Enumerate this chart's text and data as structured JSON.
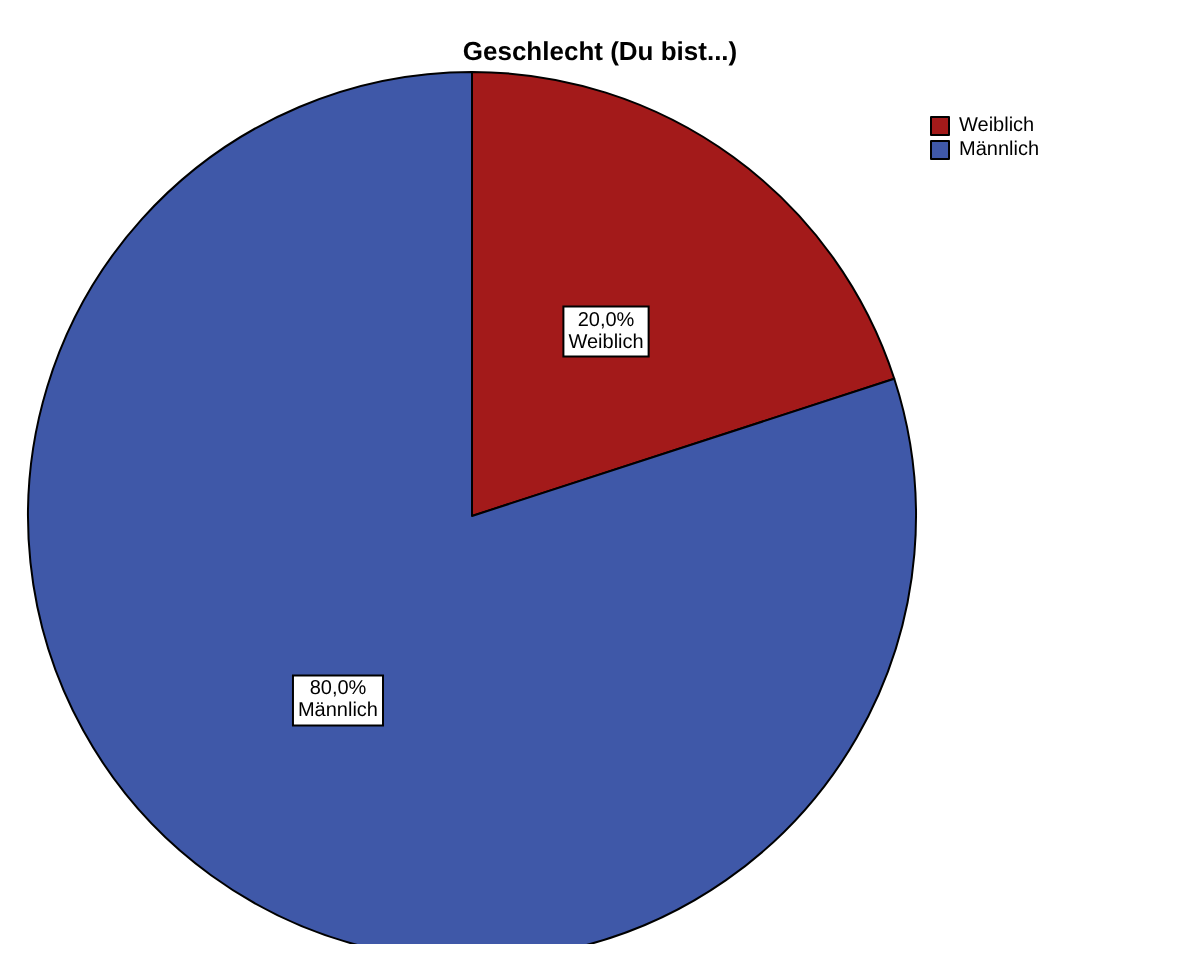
{
  "chart_data": {
    "type": "pie",
    "title": "Geschlecht (Du bist...)",
    "categories": [
      "Weiblich",
      "Männlich"
    ],
    "values": [
      20,
      80
    ],
    "value_labels": [
      "20,0%",
      "80,0%"
    ],
    "colors": [
      "#a31a1a",
      "#3f58a8"
    ],
    "legend": "top right"
  }
}
